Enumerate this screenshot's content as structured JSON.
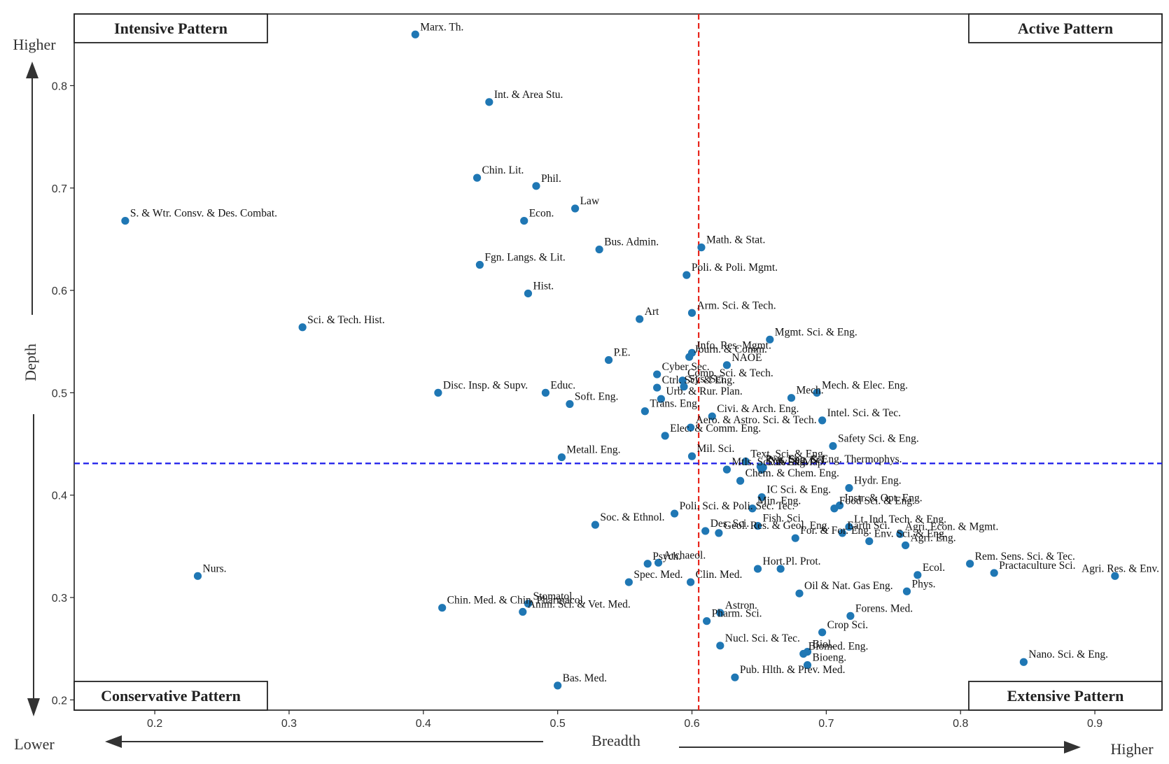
{
  "chart_data": {
    "type": "scatter",
    "xlabel": "Breadth",
    "ylabel": "Depth",
    "xlim": [
      0.14,
      0.95
    ],
    "ylim": [
      0.19,
      0.87
    ],
    "xticks": [
      "0.2",
      "0.3",
      "0.4",
      "0.5",
      "0.6",
      "0.7",
      "0.8",
      "0.9"
    ],
    "yticks": [
      "0.2",
      "0.3",
      "0.4",
      "0.5",
      "0.6",
      "0.7",
      "0.8"
    ],
    "x_threshold": 0.605,
    "y_threshold": 0.431,
    "grid": false,
    "point_color": "#1f77b4",
    "vline_color": "#e8261d",
    "hline_color": "#1a1aea",
    "quadrants": {
      "top_left": "Intensive Pattern",
      "top_right": "Active Pattern",
      "bottom_left": "Conservative Pattern",
      "bottom_right": "Extensive Pattern"
    },
    "axis_words": {
      "y_high": "Higher",
      "y_low": "Lower",
      "x_high": "Higher"
    },
    "points": [
      {
        "label": "Marx. Th.",
        "x": 0.394,
        "y": 0.85
      },
      {
        "label": "Int. & Area Stu.",
        "x": 0.449,
        "y": 0.784
      },
      {
        "label": "Chin. Lit.",
        "x": 0.44,
        "y": 0.71
      },
      {
        "label": "Phil.",
        "x": 0.484,
        "y": 0.702
      },
      {
        "label": "S. & Wtr. Consv. & Des. Combat.",
        "x": 0.178,
        "y": 0.668
      },
      {
        "label": "Econ.",
        "x": 0.475,
        "y": 0.668
      },
      {
        "label": "Law",
        "x": 0.513,
        "y": 0.68
      },
      {
        "label": "Bus. Admin.",
        "x": 0.531,
        "y": 0.64
      },
      {
        "label": "Math. & Stat.",
        "x": 0.607,
        "y": 0.642
      },
      {
        "label": "Fgn. Langs. & Lit.",
        "x": 0.442,
        "y": 0.625
      },
      {
        "label": "Poli. & Poli. Mgmt.",
        "x": 0.596,
        "y": 0.615
      },
      {
        "label": "Hist.",
        "x": 0.478,
        "y": 0.597
      },
      {
        "label": "Arm. Sci. & Tech.",
        "x": 0.6,
        "y": 0.578
      },
      {
        "label": "Art",
        "x": 0.561,
        "y": 0.572
      },
      {
        "label": "Sci. & Tech. Hist.",
        "x": 0.31,
        "y": 0.564
      },
      {
        "label": "Info. Res. Mgmt.",
        "x": 0.6,
        "y": 0.539
      },
      {
        "label": "Mgmt. Sci. & Eng.",
        "x": 0.658,
        "y": 0.552
      },
      {
        "label": "Journ. & Comm.",
        "x": 0.598,
        "y": 0.535
      },
      {
        "label": "P.E.",
        "x": 0.538,
        "y": 0.532
      },
      {
        "label": "Cyber Sec.",
        "x": 0.574,
        "y": 0.518
      },
      {
        "label": "NAOE",
        "x": 0.626,
        "y": 0.527
      },
      {
        "label": "Comp. Sci. & Tech.",
        "x": 0.593,
        "y": 0.512
      },
      {
        "label": "Ctrl. Sci. & Eng.",
        "x": 0.574,
        "y": 0.505
      },
      {
        "label": "Sys. Sci.",
        "x": 0.594,
        "y": 0.506
      },
      {
        "label": "Urb. & Rur. Plan.",
        "x": 0.577,
        "y": 0.494
      },
      {
        "label": "Educ.",
        "x": 0.491,
        "y": 0.5
      },
      {
        "label": "Disc. Insp. & Supv.",
        "x": 0.411,
        "y": 0.5
      },
      {
        "label": "Mech. & Elec. Eng.",
        "x": 0.693,
        "y": 0.5
      },
      {
        "label": "Mech.",
        "x": 0.674,
        "y": 0.495
      },
      {
        "label": "Soft. Eng.",
        "x": 0.509,
        "y": 0.489
      },
      {
        "label": "Trans. Eng.",
        "x": 0.565,
        "y": 0.482
      },
      {
        "label": "Intel. Sci. & Tec.",
        "x": 0.697,
        "y": 0.473
      },
      {
        "label": "Civi. & Arch. Eng.",
        "x": 0.615,
        "y": 0.477
      },
      {
        "label": "Aero. & Astro. Sci. & Tech.",
        "x": 0.599,
        "y": 0.466
      },
      {
        "label": "Elec. & Comm. Eng.",
        "x": 0.58,
        "y": 0.458
      },
      {
        "label": "Safety Sci. & Eng.",
        "x": 0.705,
        "y": 0.448
      },
      {
        "label": "Pwr. Eng. & Eng. Thermophys.",
        "x": 0.651,
        "y": 0.428
      },
      {
        "label": "Text. Sci. & Eng.",
        "x": 0.64,
        "y": 0.433
      },
      {
        "label": "Metall. Eng.",
        "x": 0.503,
        "y": 0.437
      },
      {
        "label": "Mil. Sci.",
        "x": 0.6,
        "y": 0.438
      },
      {
        "label": "Nat. Sec. Sci.",
        "x": 0.653,
        "y": 0.427
      },
      {
        "label": "Mtls. Sci. & Eng.",
        "x": 0.626,
        "y": 0.425
      },
      {
        "label": "Surv. & Map.",
        "x": 0.652,
        "y": 0.425
      },
      {
        "label": "Chem. & Chem. Eng.",
        "x": 0.636,
        "y": 0.414
      },
      {
        "label": "Hydr. Eng.",
        "x": 0.717,
        "y": 0.407
      },
      {
        "label": "IC Sci. & Eng.",
        "x": 0.652,
        "y": 0.398
      },
      {
        "label": "Instr. & Opt. Eng.",
        "x": 0.71,
        "y": 0.39
      },
      {
        "label": "Min. Eng.",
        "x": 0.645,
        "y": 0.387
      },
      {
        "label": "Food Sci. & Eng.",
        "x": 0.706,
        "y": 0.387
      },
      {
        "label": "Poli. Sci. & Poli. Sec. Tec.",
        "x": 0.587,
        "y": 0.382
      },
      {
        "label": "Soc. & Ethnol.",
        "x": 0.528,
        "y": 0.371
      },
      {
        "label": "Lt. Ind. Tech. & Eng.",
        "x": 0.717,
        "y": 0.369
      },
      {
        "label": "Fish. Sci.",
        "x": 0.649,
        "y": 0.37
      },
      {
        "label": "Des. Sci.",
        "x": 0.61,
        "y": 0.365
      },
      {
        "label": "Geol. Res. & Geol. Eng.",
        "x": 0.62,
        "y": 0.363
      },
      {
        "label": "Agri. Econ. & Mgmt.",
        "x": 0.755,
        "y": 0.362
      },
      {
        "label": "Agri. Eng.",
        "x": 0.759,
        "y": 0.351
      },
      {
        "label": "Earth Sci.",
        "x": 0.712,
        "y": 0.363
      },
      {
        "label": "Env. Sci. & Eng.",
        "x": 0.732,
        "y": 0.355
      },
      {
        "label": "For. & For. Eng.",
        "x": 0.677,
        "y": 0.358
      },
      {
        "label": "Psych.",
        "x": 0.567,
        "y": 0.333
      },
      {
        "label": "Archaeol.",
        "x": 0.575,
        "y": 0.334
      },
      {
        "label": "Pl. Prot.",
        "x": 0.666,
        "y": 0.328
      },
      {
        "label": "Ecol.",
        "x": 0.768,
        "y": 0.322
      },
      {
        "label": "Rem. Sens. Sci. & Tec.",
        "x": 0.807,
        "y": 0.333
      },
      {
        "label": "Agri. Res. & Env.",
        "x": 0.915,
        "y": 0.321
      },
      {
        "label": "Practaculture Sci.",
        "x": 0.825,
        "y": 0.324
      },
      {
        "label": "Nurs.",
        "x": 0.232,
        "y": 0.321
      },
      {
        "label": "Spec. Med.",
        "x": 0.553,
        "y": 0.315
      },
      {
        "label": "Clin. Med.",
        "x": 0.599,
        "y": 0.315
      },
      {
        "label": "Hort.",
        "x": 0.649,
        "y": 0.328
      },
      {
        "label": "Phys.",
        "x": 0.76,
        "y": 0.306
      },
      {
        "label": "Oil & Nat. Gas Eng.",
        "x": 0.68,
        "y": 0.304
      },
      {
        "label": "Chin. Med. & Chin. Pharmacol.",
        "x": 0.414,
        "y": 0.29
      },
      {
        "label": "Stomatol.",
        "x": 0.478,
        "y": 0.294
      },
      {
        "label": "Anim. Sci. & Vet. Med.",
        "x": 0.474,
        "y": 0.286
      },
      {
        "label": "Astron.",
        "x": 0.621,
        "y": 0.285
      },
      {
        "label": "Forens. Med.",
        "x": 0.718,
        "y": 0.282
      },
      {
        "label": "Pharm. Sci.",
        "x": 0.611,
        "y": 0.277
      },
      {
        "label": "Crop Sci.",
        "x": 0.697,
        "y": 0.266
      },
      {
        "label": "Nucl. Sci. & Tec.",
        "x": 0.621,
        "y": 0.253
      },
      {
        "label": "Biol.",
        "x": 0.686,
        "y": 0.247
      },
      {
        "label": "Biomed. Eng.",
        "x": 0.683,
        "y": 0.245
      },
      {
        "label": "Bioeng.",
        "x": 0.686,
        "y": 0.234
      },
      {
        "label": "Nano. Sci. & Eng.",
        "x": 0.847,
        "y": 0.237
      },
      {
        "label": "Pub. Hlth. & Prev. Med.",
        "x": 0.632,
        "y": 0.222
      },
      {
        "label": "Bas. Med.",
        "x": 0.5,
        "y": 0.214
      }
    ]
  }
}
